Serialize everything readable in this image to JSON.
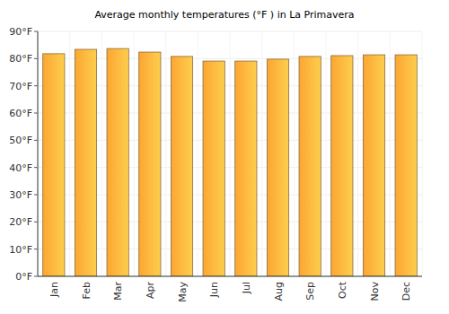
{
  "chart_data": {
    "type": "bar",
    "title": "Average monthly temperatures (°F ) in La Primavera",
    "categories": [
      "Jan",
      "Feb",
      "Mar",
      "Apr",
      "May",
      "Jun",
      "Jul",
      "Aug",
      "Sep",
      "Oct",
      "Nov",
      "Dec"
    ],
    "values": [
      81.8,
      83.4,
      83.7,
      82.4,
      80.8,
      79.1,
      79.1,
      79.8,
      80.8,
      81.1,
      81.4,
      81.4
    ],
    "color": "#fca632",
    "ylim": [
      0,
      90
    ],
    "yticks": [
      {
        "value": 0,
        "label": "0°F"
      },
      {
        "value": 10,
        "label": "10°F"
      },
      {
        "value": 20,
        "label": "20°F"
      },
      {
        "value": 30,
        "label": "30°F"
      },
      {
        "value": 40,
        "label": "40°F"
      },
      {
        "value": 50,
        "label": "50°F"
      },
      {
        "value": 60,
        "label": "60°F"
      },
      {
        "value": 70,
        "label": "70°F"
      },
      {
        "value": 80,
        "label": "80°F"
      },
      {
        "value": 90,
        "label": "90°F"
      }
    ],
    "grid": true
  }
}
